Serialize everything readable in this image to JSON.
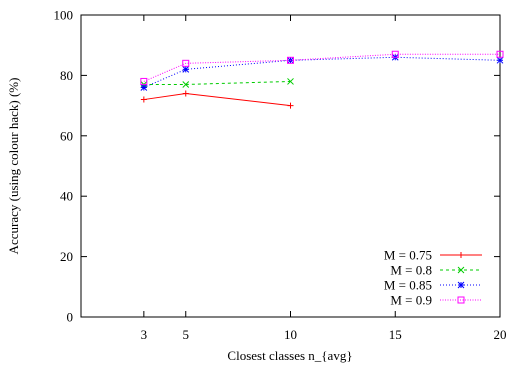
{
  "chart_data": {
    "type": "line",
    "title": "",
    "xlabel": "Closest classes n_{avg}",
    "ylabel": "Accuracy (using colour hack) (%)",
    "xlim": [
      0,
      20
    ],
    "ylim": [
      0,
      100
    ],
    "xticks": [
      "3",
      "5",
      "10",
      "15",
      "20"
    ],
    "yticks": [
      "0",
      "20",
      "40",
      "60",
      "80",
      "100"
    ],
    "grid": false,
    "legend_position": "bottom-right",
    "series": [
      {
        "name": "M = 0.75",
        "color": "#ff0000",
        "marker": "plus",
        "dash": "solid",
        "x": [
          3,
          5,
          10
        ],
        "y": [
          72,
          74,
          70
        ]
      },
      {
        "name": "M = 0.8",
        "color": "#00cc00",
        "marker": "cross",
        "dash": "dashed",
        "x": [
          3,
          5,
          10
        ],
        "y": [
          77,
          77,
          78
        ]
      },
      {
        "name": "M = 0.85",
        "color": "#0000ff",
        "marker": "star",
        "dash": "dotted",
        "x": [
          3,
          5,
          10,
          15,
          20
        ],
        "y": [
          76,
          82,
          85,
          86,
          85
        ]
      },
      {
        "name": "M = 0.9",
        "color": "#ff00ff",
        "marker": "square",
        "dash": "finedotted",
        "x": [
          3,
          5,
          10,
          15,
          20
        ],
        "y": [
          78,
          84,
          85,
          87,
          87
        ]
      }
    ]
  }
}
